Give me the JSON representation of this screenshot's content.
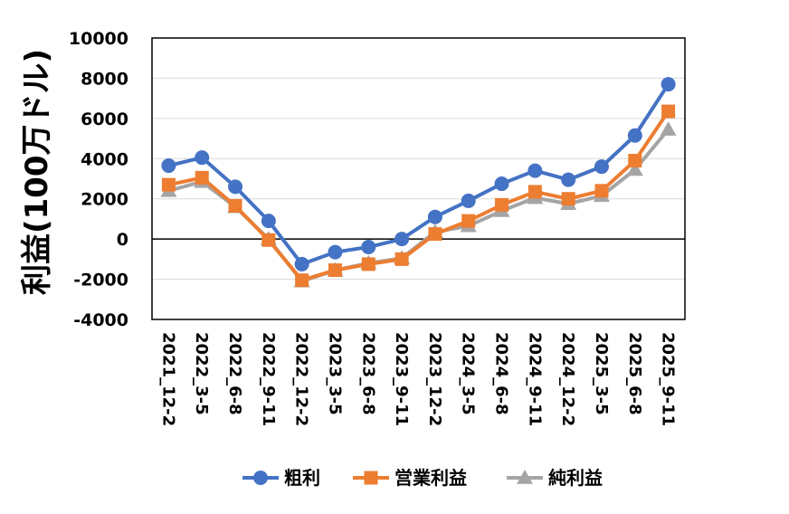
{
  "chart_data": {
    "type": "line",
    "title": "",
    "xlabel": "",
    "ylabel": "利益(100万ドル)",
    "ylim": [
      -4000,
      10000
    ],
    "yticks": [
      -4000,
      -2000,
      0,
      2000,
      4000,
      6000,
      8000,
      10000
    ],
    "ytick_labels": [
      "-4000",
      "-2000",
      "0",
      "2000",
      "4000",
      "6000",
      "8000",
      "10000"
    ],
    "grid": true,
    "legend_position": "bottom",
    "categories": [
      "2021_12-2",
      "2022_3-5",
      "2022_6-8",
      "2022_9-11",
      "2022_12-2",
      "2023_3-5",
      "2023_6-8",
      "2023_9-11",
      "2023_12-2",
      "2024_3-5",
      "2024_6-8",
      "2024_9-11",
      "2024_12-2",
      "2025_3-5",
      "2025_6-8",
      "2025_9-11"
    ],
    "series": [
      {
        "name": "粗利",
        "color": "#4472C4",
        "marker": "circle",
        "values": [
          3650,
          4050,
          2600,
          900,
          -1250,
          -650,
          -400,
          0,
          1100,
          1900,
          2750,
          3400,
          2950,
          3600,
          5150,
          7700
        ]
      },
      {
        "name": "営業利益",
        "color": "#ED7D31",
        "marker": "square",
        "values": [
          2700,
          3050,
          1650,
          -50,
          -2050,
          -1550,
          -1250,
          -1000,
          250,
          900,
          1700,
          2350,
          2000,
          2400,
          3900,
          6350
        ]
      },
      {
        "name": "純利益",
        "color": "#A5A5A5",
        "marker": "triangle",
        "values": [
          2400,
          2850,
          1600,
          0,
          -2100,
          -1550,
          -1200,
          -950,
          350,
          650,
          1400,
          2050,
          1750,
          2150,
          3450,
          5450
        ]
      }
    ]
  }
}
